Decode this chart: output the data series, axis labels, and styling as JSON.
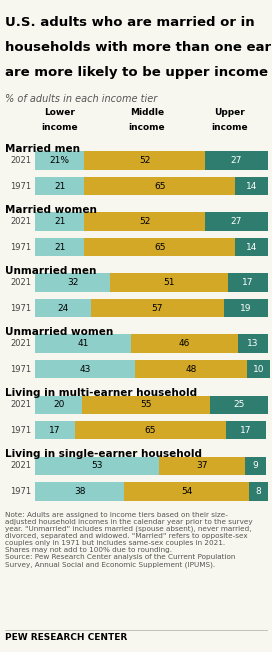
{
  "title": "U.S. adults who are married or in\nhouseholds with more than one earner\nare more likely to be upper income",
  "subtitle": "% of adults in each income tier",
  "col_headers": [
    "Lower\nincome",
    "Middle\nincome",
    "Upper\nincome"
  ],
  "groups": [
    {
      "label": "Married men",
      "rows": [
        {
          "year": "2021",
          "lower": 21,
          "middle": 52,
          "upper": 27
        },
        {
          "year": "1971",
          "lower": 21,
          "middle": 65,
          "upper": 14
        }
      ]
    },
    {
      "label": "Married women",
      "rows": [
        {
          "year": "2021",
          "lower": 21,
          "middle": 52,
          "upper": 27
        },
        {
          "year": "1971",
          "lower": 21,
          "middle": 65,
          "upper": 14
        }
      ]
    },
    {
      "label": "Unmarried men",
      "rows": [
        {
          "year": "2021",
          "lower": 32,
          "middle": 51,
          "upper": 17
        },
        {
          "year": "1971",
          "lower": 24,
          "middle": 57,
          "upper": 19
        }
      ]
    },
    {
      "label": "Unmarried women",
      "rows": [
        {
          "year": "2021",
          "lower": 41,
          "middle": 46,
          "upper": 13
        },
        {
          "year": "1971",
          "lower": 43,
          "middle": 48,
          "upper": 10
        }
      ]
    },
    {
      "label": "Living in multi-earner household",
      "rows": [
        {
          "year": "2021",
          "lower": 20,
          "middle": 55,
          "upper": 25
        },
        {
          "year": "1971",
          "lower": 17,
          "middle": 65,
          "upper": 17
        }
      ]
    },
    {
      "label": "Living in single-earner household",
      "rows": [
        {
          "year": "2021",
          "lower": 53,
          "middle": 37,
          "upper": 9
        },
        {
          "year": "1971",
          "lower": 38,
          "middle": 54,
          "upper": 8
        }
      ]
    }
  ],
  "colors": {
    "lower": "#8ecfc9",
    "middle": "#d4a827",
    "upper": "#2e7d6e"
  },
  "note": "Note: Adults are assigned to income tiers based on their size-\nadjusted household incomes in the calendar year prior to the survey\nyear. \"Unmarried\" includes married (spouse absent), never married,\ndivorced, separated and widowed. \"Married\" refers to opposite-sex\ncouples only in 1971 but includes same-sex couples in 2021.\nShares may not add to 100% due to rounding.\nSource: Pew Research Center analysis of the Current Population\nSurvey, Annual Social and Economic Supplement (IPUMS).",
  "footer": "PEW RESEARCH CENTER",
  "background_color": "#f7f7ef",
  "font_size_labels": 6.5,
  "font_size_title": 9.5,
  "font_size_subtitle": 7.0,
  "font_size_group": 7.5,
  "font_size_note": 5.2
}
